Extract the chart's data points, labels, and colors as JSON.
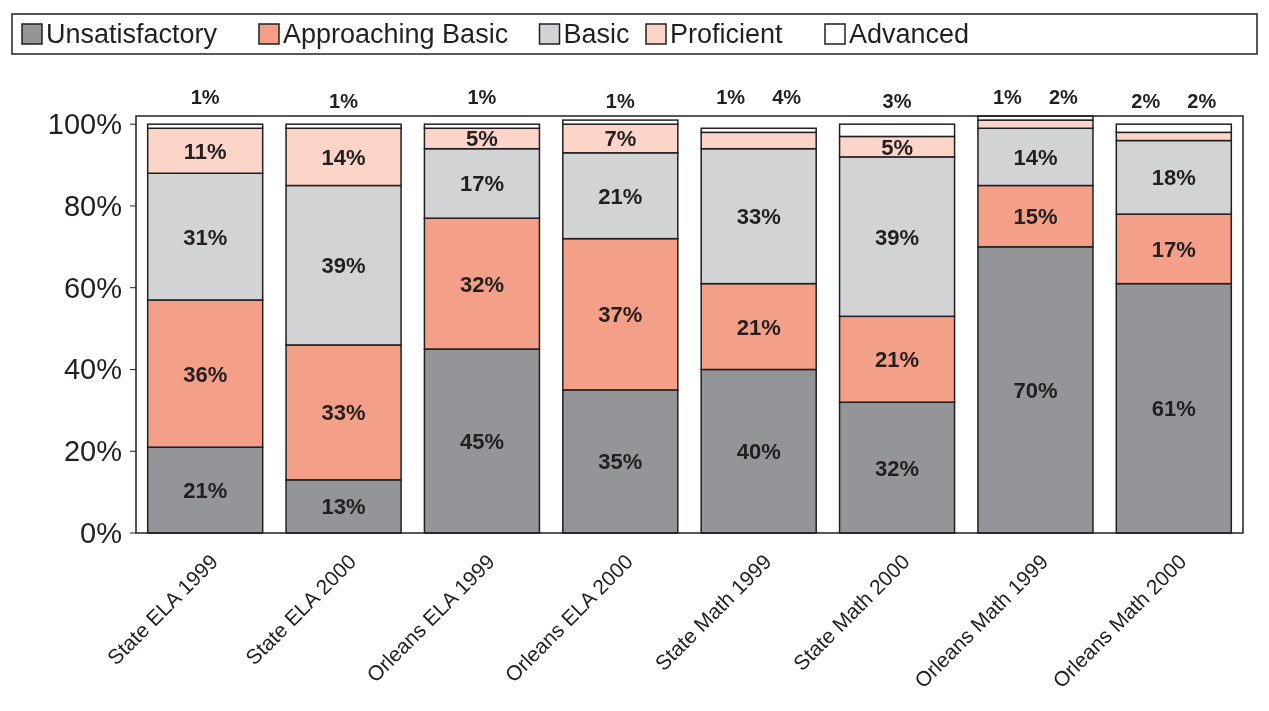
{
  "chart_data": {
    "type": "bar",
    "stacked": true,
    "categories": [
      "State ELA 1999",
      "State ELA 2000",
      "Orleans ELA 1999",
      "Orleans ELA 2000",
      "State Math 1999",
      "State Math 2000",
      "Orleans Math 1999",
      "Orleans Math 2000"
    ],
    "series": [
      {
        "name": "Unsatisfactory",
        "color": "#939598",
        "values": [
          21,
          13,
          45,
          35,
          40,
          32,
          70,
          61
        ],
        "value_labels": [
          "21%",
          "13%",
          "45%",
          "35%",
          "40%",
          "32%",
          "70%",
          "61%"
        ]
      },
      {
        "name": "Approaching Basic",
        "color": "#f4a088",
        "values": [
          36,
          33,
          32,
          37,
          21,
          21,
          15,
          17
        ],
        "value_labels": [
          "36%",
          "33%",
          "32%",
          "37%",
          "21%",
          "21%",
          "15%",
          "17%"
        ]
      },
      {
        "name": "Basic",
        "color": "#d1d3d4",
        "values": [
          31,
          39,
          17,
          21,
          33,
          39,
          14,
          18
        ],
        "value_labels": [
          "31%",
          "39%",
          "17%",
          "21%",
          "33%",
          "39%",
          "14%",
          "18%"
        ]
      },
      {
        "name": "Proficient",
        "color": "#fcd5c8",
        "values": [
          11,
          14,
          5,
          7,
          4,
          5,
          2,
          2
        ],
        "value_labels": [
          "11%",
          "14%",
          "5%",
          "7%",
          "4%",
          "5%",
          "2%",
          "2%"
        ]
      },
      {
        "name": "Advanced",
        "color": "#ffffff",
        "values": [
          1,
          1,
          1,
          1,
          1,
          3,
          1,
          2
        ],
        "value_labels": [
          "1%",
          "1%",
          "1%",
          "1%",
          "1%",
          "3%",
          "1%",
          "2%"
        ]
      }
    ],
    "ylim": [
      0,
      102
    ],
    "yticks": [
      {
        "value": 0,
        "label": "0%"
      },
      {
        "value": 20,
        "label": "20%"
      },
      {
        "value": 40,
        "label": "40%"
      },
      {
        "value": 60,
        "label": "60%"
      },
      {
        "value": 80,
        "label": "80%"
      },
      {
        "value": 100,
        "label": "100%"
      }
    ],
    "legend": "top",
    "grid": false
  }
}
